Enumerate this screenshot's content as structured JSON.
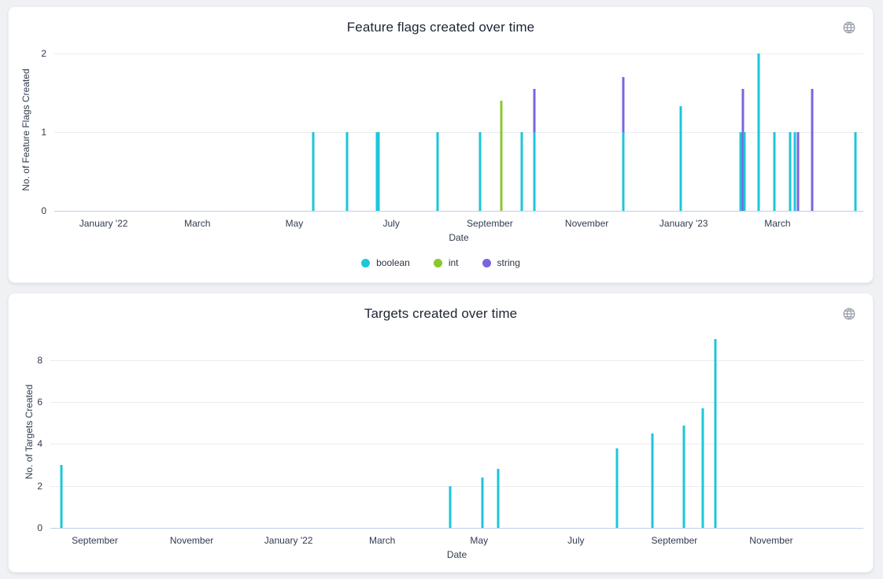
{
  "colors": {
    "boolean": "#1dc6d9",
    "int": "#8bc72f",
    "string": "#7c63e0",
    "page_background": "#eff1f4",
    "card_background": "#ffffff",
    "axis_baseline": "#bed0ea",
    "gridline": "#e9ecf2",
    "title_text": "#1d2534",
    "axis_text": "#313c4e",
    "icon_gray": "#9aa0ab"
  },
  "chart_data": [
    {
      "type": "bar",
      "title": "Feature flags created over time",
      "xlabel": "Date",
      "ylabel": "No. of Feature Flags Created",
      "x_axis_type": "time",
      "grid": "horizontal",
      "legend_position": "bottom-center",
      "x_domain": [
        "2021-12-01",
        "2023-04-24"
      ],
      "y_ticks": [
        0,
        1,
        2
      ],
      "y_plot_max": 2.07,
      "x_ticks": [
        {
          "label": "January '22",
          "date": "2022-01-01"
        },
        {
          "label": "March",
          "date": "2022-03-01"
        },
        {
          "label": "May",
          "date": "2022-05-01"
        },
        {
          "label": "July",
          "date": "2022-07-01"
        },
        {
          "label": "September",
          "date": "2022-09-01"
        },
        {
          "label": "November",
          "date": "2022-11-01"
        },
        {
          "label": "January '23",
          "date": "2023-01-01"
        },
        {
          "label": "March",
          "date": "2023-03-01"
        }
      ],
      "legend": [
        {
          "label": "boolean",
          "color": "#1dc6d9"
        },
        {
          "label": "int",
          "color": "#8bc72f"
        },
        {
          "label": "string",
          "color": "#7c63e0"
        }
      ],
      "series": [
        {
          "name": "boolean",
          "color": "#1dc6d9",
          "points": [
            {
              "date": "2022-05-13",
              "value": 1
            },
            {
              "date": "2022-06-03",
              "value": 1
            },
            {
              "date": "2022-06-22",
              "value": 1
            },
            {
              "date": "2022-06-23",
              "value": 1
            },
            {
              "date": "2022-07-30",
              "value": 1
            },
            {
              "date": "2022-08-26",
              "value": 1
            },
            {
              "date": "2022-09-21",
              "value": 1
            },
            {
              "date": "2022-09-29",
              "value": 1
            },
            {
              "date": "2022-11-24",
              "value": 1
            },
            {
              "date": "2022-12-30",
              "value": 1.33
            },
            {
              "date": "2023-02-06",
              "value": 1
            },
            {
              "date": "2023-02-08",
              "value": 1
            },
            {
              "date": "2023-02-17",
              "value": 2
            },
            {
              "date": "2023-02-27",
              "value": 1
            },
            {
              "date": "2023-03-09",
              "value": 1
            },
            {
              "date": "2023-03-12",
              "value": 1
            },
            {
              "date": "2023-04-19",
              "value": 1
            }
          ]
        },
        {
          "name": "int",
          "color": "#8bc72f",
          "points": [
            {
              "date": "2022-09-08",
              "value": 1.4
            }
          ]
        },
        {
          "name": "string",
          "color": "#7c63e0",
          "points": [
            {
              "date": "2022-09-29",
              "value": 1.55
            },
            {
              "date": "2022-11-24",
              "value": 1.7
            },
            {
              "date": "2023-02-07",
              "value": 1.55
            },
            {
              "date": "2023-03-14",
              "value": 1
            },
            {
              "date": "2023-03-23",
              "value": 1.55
            }
          ]
        }
      ]
    },
    {
      "type": "bar",
      "title": "Targets created over time",
      "xlabel": "Date",
      "ylabel": "No. of Targets Created",
      "x_axis_type": "time",
      "grid": "horizontal",
      "x_domain": [
        "2021-08-04",
        "2022-12-29"
      ],
      "y_ticks": [
        0,
        2,
        4,
        6,
        8
      ],
      "y_plot_max": 9.2,
      "x_ticks": [
        {
          "label": "September",
          "date": "2021-09-01"
        },
        {
          "label": "November",
          "date": "2021-11-01"
        },
        {
          "label": "January '22",
          "date": "2022-01-01"
        },
        {
          "label": "March",
          "date": "2022-03-01"
        },
        {
          "label": "May",
          "date": "2022-05-01"
        },
        {
          "label": "July",
          "date": "2022-07-01"
        },
        {
          "label": "September",
          "date": "2022-09-01"
        },
        {
          "label": "November",
          "date": "2022-11-01"
        }
      ],
      "series": [
        {
          "name": "targets",
          "color": "#1dc6d9",
          "points": [
            {
              "date": "2021-08-11",
              "value": 3
            },
            {
              "date": "2022-04-13",
              "value": 2
            },
            {
              "date": "2022-05-03",
              "value": 2.4
            },
            {
              "date": "2022-05-13",
              "value": 2.8
            },
            {
              "date": "2022-07-27",
              "value": 3.8
            },
            {
              "date": "2022-08-18",
              "value": 4.5
            },
            {
              "date": "2022-09-07",
              "value": 4.9
            },
            {
              "date": "2022-09-19",
              "value": 5.7
            },
            {
              "date": "2022-09-27",
              "value": 9
            }
          ]
        }
      ]
    }
  ]
}
